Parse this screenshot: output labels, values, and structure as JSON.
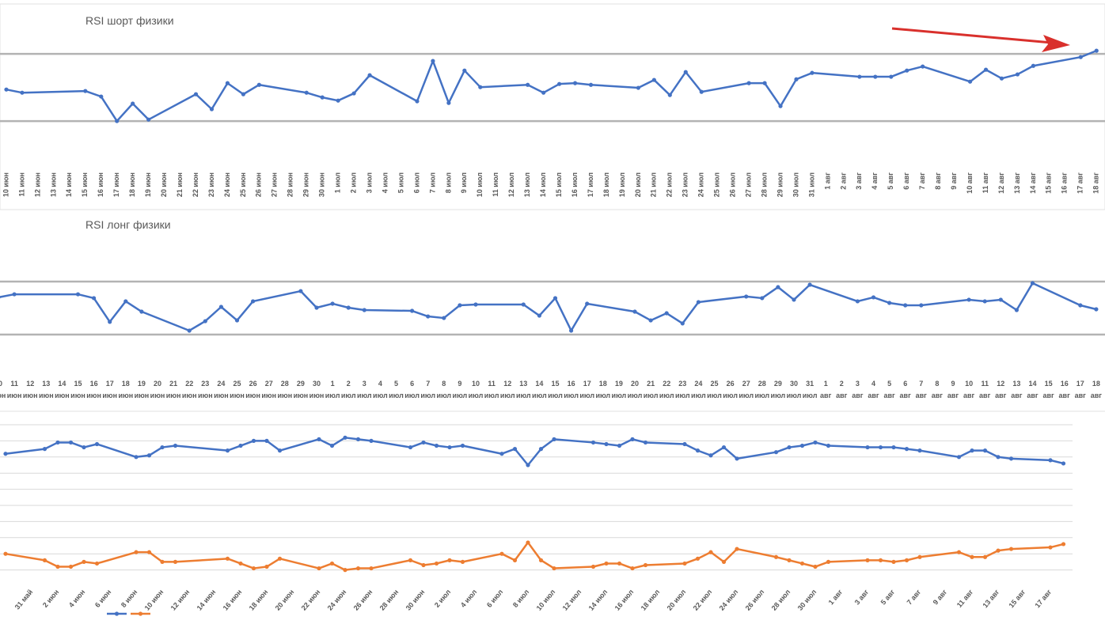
{
  "chart_data": [
    {
      "type": "line",
      "title": "RSI шорт физики",
      "categories": [
        "10 июн",
        "11 июн",
        "12 июн",
        "13 июн",
        "14 июн",
        "15 июн",
        "16 июн",
        "17 июн",
        "18 июн",
        "19 июн",
        "20 июн",
        "21 июн",
        "22 июн",
        "23 июн",
        "24 июн",
        "25 июн",
        "26 июн",
        "27 июн",
        "28 июн",
        "29 июн",
        "30 июн",
        "1 июл",
        "2 июл",
        "3 июл",
        "4 июл",
        "5 июл",
        "6 июл",
        "7 июл",
        "8 июл",
        "9 июл",
        "10 июл",
        "11 июл",
        "12 июл",
        "13 июл",
        "14 июл",
        "15 июл",
        "16 июл",
        "17 июл",
        "18 июл",
        "19 июл",
        "20 июл",
        "21 июл",
        "22 июл",
        "23 июл",
        "24 июл",
        "25 июл",
        "26 июл",
        "27 июл",
        "28 июл",
        "29 июл",
        "30 июл",
        "31 июл",
        "1 авг",
        "2 авг",
        "3 авг",
        "4 авг",
        "5 авг",
        "6 авг",
        "7 авг",
        "8 авг",
        "9 авг",
        "10 авг",
        "11 авг",
        "12 авг",
        "13 авг",
        "14 авг",
        "15 авг",
        "16 авг",
        "17 авг",
        "18 авг"
      ],
      "x": [
        0,
        1,
        5,
        6,
        7,
        8,
        9,
        12,
        13,
        14,
        15,
        16,
        19,
        20,
        21,
        22,
        23,
        26,
        27,
        28,
        29,
        30,
        33,
        34,
        35,
        36,
        37,
        40,
        41,
        42,
        43,
        44,
        47,
        48,
        49,
        50,
        51,
        54,
        55,
        56,
        57,
        58,
        61,
        62,
        63,
        64,
        65,
        68,
        69
      ],
      "series": [
        {
          "color": "#4472c4",
          "values": [
            48.8,
            46.9,
            47.9,
            44.6,
            30,
            40.4,
            30.9,
            46,
            37.1,
            52.6,
            46,
            51.6,
            46.9,
            44.1,
            42.2,
            46.5,
            57.3,
            41.8,
            65.8,
            40.8,
            60.1,
            50.2,
            51.6,
            46.9,
            52.1,
            52.6,
            51.6,
            49.8,
            54.5,
            45.5,
            59.2,
            47.4,
            52.6,
            52.6,
            38.9,
            54.9,
            58.7,
            56.4,
            56.4,
            56.4,
            60.1,
            62.5,
            53.5,
            60.6,
            55.4,
            57.8,
            62.9,
            68.1,
            71.9
          ]
        }
      ],
      "ylim": [
        0,
        100
      ],
      "levels": [
        30,
        70
      ],
      "level_color": "#b3b3b3"
    },
    {
      "type": "line",
      "title": "RSI лонг физики",
      "categories": [
        "10",
        "11",
        "12",
        "13",
        "14",
        "15",
        "16",
        "17",
        "18",
        "19",
        "20",
        "21",
        "22",
        "23",
        "24",
        "25",
        "26",
        "27",
        "28",
        "29",
        "30",
        "1",
        "2",
        "3",
        "4",
        "5",
        "6",
        "7",
        "8",
        "9",
        "10",
        "11",
        "12",
        "13",
        "14",
        "15",
        "16",
        "17",
        "18",
        "19",
        "20",
        "21",
        "22",
        "23",
        "24",
        "25",
        "26",
        "27",
        "28",
        "29",
        "30",
        "31",
        "1",
        "2",
        "3",
        "4",
        "5",
        "6",
        "7",
        "8",
        "9",
        "10",
        "11",
        "12",
        "13",
        "14",
        "15",
        "16",
        "17",
        "18"
      ],
      "months": [
        "июн",
        "июн",
        "июн",
        "июн",
        "июн",
        "июн",
        "июн",
        "июн",
        "июн",
        "июн",
        "июн",
        "июн",
        "июн",
        "июн",
        "июн",
        "июн",
        "июн",
        "июн",
        "июн",
        "июн",
        "июн",
        "июл",
        "июл",
        "июл",
        "июл",
        "июл",
        "июл",
        "июл",
        "июл",
        "июл",
        "июл",
        "июл",
        "июл",
        "июл",
        "июл",
        "июл",
        "июл",
        "июл",
        "июл",
        "июл",
        "июл",
        "июл",
        "июл",
        "июл",
        "июл",
        "июл",
        "июл",
        "июл",
        "июл",
        "июл",
        "июл",
        "июл",
        "авг",
        "авг",
        "авг",
        "авг",
        "авг",
        "авг",
        "авг",
        "авг",
        "авг",
        "авг",
        "авг",
        "авг",
        "авг",
        "авг",
        "авг",
        "авг",
        "авг",
        "авг"
      ],
      "x": [
        0,
        1,
        5,
        6,
        7,
        8,
        9,
        12,
        13,
        14,
        15,
        16,
        19,
        20,
        21,
        22,
        23,
        26,
        27,
        28,
        29,
        30,
        33,
        34,
        35,
        36,
        37,
        40,
        41,
        42,
        43,
        44,
        47,
        48,
        49,
        50,
        51,
        54,
        55,
        56,
        57,
        58,
        61,
        62,
        63,
        64,
        65,
        68,
        69
      ],
      "series": [
        {
          "color": "#4472c4",
          "values": [
            58.1,
            60.4,
            60.4,
            57.5,
            39.6,
            55.1,
            47.3,
            33,
            40.1,
            50.9,
            40.7,
            55.1,
            62.8,
            50.3,
            53.3,
            50.3,
            48.5,
            47.9,
            43.7,
            42.5,
            52.1,
            52.7,
            52.7,
            44.3,
            57.5,
            33,
            53.3,
            47.3,
            40.7,
            46.1,
            38.4,
            54.5,
            58.7,
            57.5,
            65.8,
            56.3,
            67.6,
            55.1,
            58.1,
            53.9,
            52.1,
            52.1,
            56.3,
            55.1,
            56.3,
            48.5,
            68.8,
            52.1,
            49.1
          ]
        }
      ],
      "ylim": [
        0,
        100
      ],
      "levels": [
        30,
        70
      ],
      "level_color": "#b3b3b3"
    },
    {
      "type": "line",
      "categories": [
        "31 май",
        "2 июн",
        "4 июн",
        "6 июн",
        "8 июн",
        "10 июн",
        "12 июн",
        "14 июн",
        "16 июн",
        "18 июн",
        "20 июн",
        "22 июн",
        "24 июн",
        "26 июн",
        "28 июн",
        "30 июн",
        "2 июл",
        "4 июл",
        "6 июл",
        "8 июл",
        "10 июл",
        "12 июл",
        "14 июл",
        "16 июл",
        "18 июл",
        "20 июл",
        "22 июл",
        "24 июл",
        "26 июл",
        "28 июл",
        "30 июл",
        "1 авг",
        "3 авг",
        "5 авг",
        "7 авг",
        "9 авг",
        "11 авг",
        "13 авг",
        "15 авг",
        "17 авг"
      ],
      "x": [
        -1,
        0.5,
        1,
        1.5,
        2,
        2.5,
        4,
        4.5,
        5,
        5.5,
        7.5,
        8,
        8.5,
        9,
        9.5,
        11,
        11.5,
        12,
        12.5,
        13,
        14.5,
        15,
        15.5,
        16,
        16.5,
        18,
        18.5,
        19,
        19.5,
        20,
        21.5,
        22,
        22.5,
        23,
        23.5,
        25,
        25.5,
        26,
        26.5,
        27,
        28.5,
        29,
        29.5,
        30,
        30.5,
        32,
        32.5,
        33,
        33.5,
        34,
        35.5,
        36,
        36.5,
        37,
        37.5,
        39,
        39.5
      ],
      "series": [
        {
          "color": "#4472c4",
          "values": [
            8.2,
            8.5,
            8.9,
            8.9,
            8.6,
            8.8,
            8.0,
            8.1,
            8.6,
            8.7,
            8.4,
            8.7,
            9.0,
            9.0,
            8.4,
            9.1,
            8.7,
            9.2,
            9.1,
            9.0,
            8.6,
            8.9,
            8.7,
            8.6,
            8.7,
            8.2,
            8.5,
            7.5,
            8.5,
            9.1,
            8.9,
            8.8,
            8.7,
            9.1,
            8.9,
            8.8,
            8.4,
            8.1,
            8.6,
            7.9,
            8.3,
            8.6,
            8.7,
            8.9,
            8.7,
            8.6,
            8.6,
            8.6,
            8.5,
            8.4,
            8.0,
            8.4,
            8.4,
            8.0,
            7.9,
            7.8,
            7.6
          ]
        },
        {
          "color": "#ed7d31",
          "values": [
            2.0,
            1.6,
            1.2,
            1.2,
            1.5,
            1.4,
            2.1,
            2.1,
            1.5,
            1.5,
            1.7,
            1.4,
            1.1,
            1.2,
            1.7,
            1.1,
            1.4,
            1.0,
            1.1,
            1.1,
            1.6,
            1.3,
            1.4,
            1.6,
            1.5,
            2.0,
            1.6,
            2.7,
            1.6,
            1.1,
            1.2,
            1.4,
            1.4,
            1.1,
            1.3,
            1.4,
            1.7,
            2.1,
            1.5,
            2.3,
            1.8,
            1.6,
            1.4,
            1.2,
            1.5,
            1.6,
            1.6,
            1.5,
            1.6,
            1.8,
            2.1,
            1.8,
            1.8,
            2.2,
            2.3,
            2.4,
            2.6
          ]
        }
      ],
      "ylim": [
        0,
        10
      ],
      "yticks": [
        1,
        2,
        3,
        4,
        5,
        6,
        7,
        8,
        9,
        10
      ],
      "grid": true,
      "legend": "bottom-left"
    }
  ]
}
